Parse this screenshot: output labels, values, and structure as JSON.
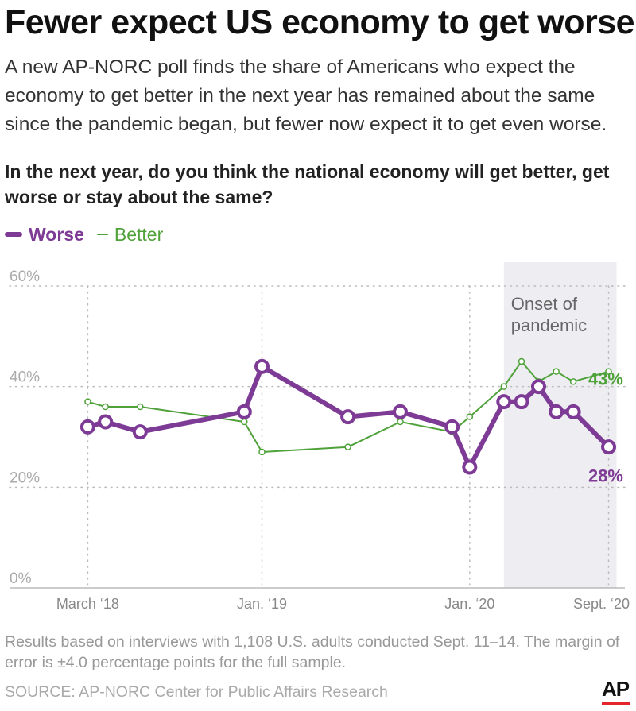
{
  "header": {
    "title": "Fewer expect US economy to get worse",
    "subtitle": "A new AP-NORC poll finds the share of Americans who expect the economy to get better in the next year has remained about the same since the pandemic began, but fewer now expect it to get even worse.",
    "question": "In the next year, do you think the national economy will get better, get worse or stay about the same?"
  },
  "legend": {
    "worse_label": "Worse",
    "better_label": "Better"
  },
  "chart_data": {
    "type": "line",
    "title": "",
    "xlabel": "",
    "ylabel": "",
    "ylim": [
      0,
      60
    ],
    "yticks": [
      0,
      20,
      40,
      60
    ],
    "ytick_labels": [
      "0%",
      "20%",
      "40%",
      "60%"
    ],
    "xlim": [
      "2017-12-01",
      "2020-10-01"
    ],
    "xticks": [
      {
        "date": "2018-03-01",
        "label": "March ‘18"
      },
      {
        "date": "2019-01-01",
        "label": "Jan. ‘19"
      },
      {
        "date": "2020-01-01",
        "label": "Jan. ‘20"
      },
      {
        "date": "2020-09-01",
        "label": "Sept. ‘20"
      }
    ],
    "grid": true,
    "shaded_region": {
      "start": "2020-03-01",
      "end": "2020-09-15",
      "label_lines": [
        "Onset of",
        "pandemic"
      ]
    },
    "series": [
      {
        "name": "Worse",
        "color": "#7e3b96",
        "end_label": "28%",
        "points": [
          {
            "x": "2018-03-01",
            "y": 32
          },
          {
            "x": "2018-04-01",
            "y": 33
          },
          {
            "x": "2018-06-01",
            "y": 31
          },
          {
            "x": "2018-12-01",
            "y": 35
          },
          {
            "x": "2019-01-01",
            "y": 44
          },
          {
            "x": "2019-06-01",
            "y": 34
          },
          {
            "x": "2019-09-01",
            "y": 35
          },
          {
            "x": "2019-12-01",
            "y": 32
          },
          {
            "x": "2020-01-01",
            "y": 24
          },
          {
            "x": "2020-03-01",
            "y": 37
          },
          {
            "x": "2020-04-01",
            "y": 37
          },
          {
            "x": "2020-05-01",
            "y": 40
          },
          {
            "x": "2020-06-01",
            "y": 35
          },
          {
            "x": "2020-07-01",
            "y": 35
          },
          {
            "x": "2020-09-01",
            "y": 28
          }
        ]
      },
      {
        "name": "Better",
        "color": "#4fa23a",
        "end_label": "43%",
        "points": [
          {
            "x": "2018-03-01",
            "y": 37
          },
          {
            "x": "2018-04-01",
            "y": 36
          },
          {
            "x": "2018-06-01",
            "y": 36
          },
          {
            "x": "2018-12-01",
            "y": 33
          },
          {
            "x": "2019-01-01",
            "y": 27
          },
          {
            "x": "2019-06-01",
            "y": 28
          },
          {
            "x": "2019-09-01",
            "y": 33
          },
          {
            "x": "2019-12-01",
            "y": 31
          },
          {
            "x": "2020-01-01",
            "y": 34
          },
          {
            "x": "2020-03-01",
            "y": 40
          },
          {
            "x": "2020-04-01",
            "y": 45
          },
          {
            "x": "2020-05-01",
            "y": 41
          },
          {
            "x": "2020-06-01",
            "y": 43
          },
          {
            "x": "2020-07-01",
            "y": 41
          },
          {
            "x": "2020-09-01",
            "y": 43
          }
        ]
      }
    ]
  },
  "footer": {
    "note": "Results based on interviews with 1,108 U.S. adults conducted Sept. 11–14. The margin of error is ±4.0 percentage points for the full sample.",
    "source": "SOURCE: AP-NORC Center for Public Affairs Research",
    "logo_text": "AP"
  }
}
